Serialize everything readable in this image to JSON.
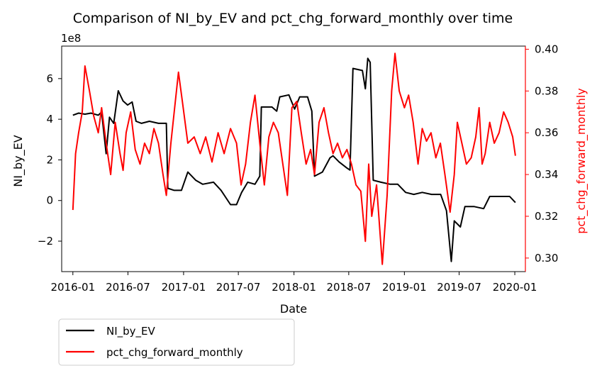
{
  "chart_data": {
    "type": "line",
    "title": "Comparison of NI_by_EV and pct_chg_forward_monthly over time",
    "xlabel": "Date",
    "x_range": [
      "2015-11-25",
      "2020-02-05"
    ],
    "x_ticks": [
      "2016-01",
      "2016-07",
      "2017-01",
      "2017-07",
      "2018-01",
      "2018-07",
      "2019-01",
      "2019-07",
      "2020-01"
    ],
    "left_axis": {
      "label": "NI_by_EV",
      "offset_text": "1e8",
      "range": [
        -3.5,
        7.6
      ],
      "ticks": [
        -2,
        0,
        2,
        4,
        6
      ],
      "tick_labels": [
        "−2",
        "0",
        "2",
        "4",
        "6"
      ],
      "color": "#000000"
    },
    "right_axis": {
      "label": "pct_chg_forward_monthly",
      "range": [
        0.2935,
        0.4015
      ],
      "ticks": [
        0.3,
        0.32,
        0.34,
        0.36,
        0.38,
        0.4
      ],
      "tick_labels": [
        "0.30",
        "0.32",
        "0.34",
        "0.36",
        "0.38",
        "0.40"
      ],
      "color": "#ff0000"
    },
    "legend": {
      "placement": "below-left",
      "entries": [
        "NI_by_EV",
        "pct_chg_forward_monthly"
      ]
    },
    "grid": false,
    "series": [
      {
        "name": "NI_by_EV",
        "axis": "left",
        "color": "#000000",
        "points": [
          [
            "2016-01-01",
            4.2
          ],
          [
            "2016-01-20",
            4.3
          ],
          [
            "2016-02-10",
            4.25
          ],
          [
            "2016-03-01",
            4.3
          ],
          [
            "2016-03-25",
            4.2
          ],
          [
            "2016-04-05",
            4.35
          ],
          [
            "2016-04-20",
            2.3
          ],
          [
            "2016-05-01",
            4.1
          ],
          [
            "2016-05-15",
            3.8
          ],
          [
            "2016-05-30",
            5.4
          ],
          [
            "2016-06-15",
            4.9
          ],
          [
            "2016-06-30",
            4.7
          ],
          [
            "2016-07-15",
            4.85
          ],
          [
            "2016-07-28",
            3.9
          ],
          [
            "2016-08-15",
            3.8
          ],
          [
            "2016-09-10",
            3.9
          ],
          [
            "2016-10-10",
            3.8
          ],
          [
            "2016-11-05",
            3.8
          ],
          [
            "2016-11-10",
            0.6
          ],
          [
            "2016-12-01",
            0.5
          ],
          [
            "2016-12-25",
            0.5
          ],
          [
            "2017-01-15",
            1.4
          ],
          [
            "2017-02-10",
            1.0
          ],
          [
            "2017-03-05",
            0.8
          ],
          [
            "2017-04-10",
            0.9
          ],
          [
            "2017-05-05",
            0.5
          ],
          [
            "2017-06-05",
            -0.2
          ],
          [
            "2017-06-25",
            -0.2
          ],
          [
            "2017-07-12",
            0.4
          ],
          [
            "2017-08-01",
            0.9
          ],
          [
            "2017-08-25",
            0.8
          ],
          [
            "2017-09-10",
            1.2
          ],
          [
            "2017-09-15",
            4.6
          ],
          [
            "2017-10-20",
            4.6
          ],
          [
            "2017-11-05",
            4.4
          ],
          [
            "2017-11-15",
            5.1
          ],
          [
            "2017-12-15",
            5.2
          ],
          [
            "2018-01-03",
            4.5
          ],
          [
            "2018-01-20",
            5.1
          ],
          [
            "2018-02-15",
            5.1
          ],
          [
            "2018-03-01",
            4.4
          ],
          [
            "2018-03-10",
            1.2
          ],
          [
            "2018-04-05",
            1.4
          ],
          [
            "2018-04-30",
            2.1
          ],
          [
            "2018-05-10",
            2.2
          ],
          [
            "2018-05-30",
            1.9
          ],
          [
            "2018-06-25",
            1.6
          ],
          [
            "2018-07-05",
            1.5
          ],
          [
            "2018-07-15",
            6.5
          ],
          [
            "2018-08-15",
            6.4
          ],
          [
            "2018-08-25",
            5.5
          ],
          [
            "2018-09-02",
            7.0
          ],
          [
            "2018-09-10",
            6.8
          ],
          [
            "2018-09-20",
            1.0
          ],
          [
            "2018-10-15",
            0.9
          ],
          [
            "2018-11-15",
            0.8
          ],
          [
            "2018-12-10",
            0.8
          ],
          [
            "2019-01-05",
            0.4
          ],
          [
            "2019-02-01",
            0.3
          ],
          [
            "2019-03-01",
            0.4
          ],
          [
            "2019-04-01",
            0.3
          ],
          [
            "2019-05-01",
            0.3
          ],
          [
            "2019-05-20",
            -0.5
          ],
          [
            "2019-06-05",
            -3.0
          ],
          [
            "2019-06-15",
            -1.0
          ],
          [
            "2019-07-05",
            -1.3
          ],
          [
            "2019-07-20",
            -0.3
          ],
          [
            "2019-08-20",
            -0.3
          ],
          [
            "2019-09-20",
            -0.4
          ],
          [
            "2019-10-10",
            0.2
          ],
          [
            "2019-11-15",
            0.2
          ],
          [
            "2019-12-15",
            0.2
          ],
          [
            "2020-01-03",
            -0.1
          ]
        ]
      },
      {
        "name": "pct_chg_forward_monthly",
        "axis": "right",
        "color": "#ff0000",
        "points": [
          [
            "2016-01-01",
            0.323
          ],
          [
            "2016-01-10",
            0.35
          ],
          [
            "2016-01-20",
            0.36
          ],
          [
            "2016-02-01",
            0.37
          ],
          [
            "2016-02-10",
            0.392
          ],
          [
            "2016-02-25",
            0.38
          ],
          [
            "2016-03-10",
            0.368
          ],
          [
            "2016-03-25",
            0.36
          ],
          [
            "2016-04-05",
            0.372
          ],
          [
            "2016-04-20",
            0.355
          ],
          [
            "2016-05-05",
            0.34
          ],
          [
            "2016-05-20",
            0.365
          ],
          [
            "2016-06-05",
            0.35
          ],
          [
            "2016-06-15",
            0.342
          ],
          [
            "2016-06-25",
            0.36
          ],
          [
            "2016-07-10",
            0.37
          ],
          [
            "2016-07-25",
            0.352
          ],
          [
            "2016-08-10",
            0.345
          ],
          [
            "2016-08-25",
            0.355
          ],
          [
            "2016-09-10",
            0.35
          ],
          [
            "2016-09-25",
            0.362
          ],
          [
            "2016-10-10",
            0.355
          ],
          [
            "2016-10-25",
            0.34
          ],
          [
            "2016-11-05",
            0.33
          ],
          [
            "2016-11-20",
            0.355
          ],
          [
            "2016-12-01",
            0.37
          ],
          [
            "2016-12-15",
            0.389
          ],
          [
            "2016-12-28",
            0.375
          ],
          [
            "2017-01-15",
            0.355
          ],
          [
            "2017-02-05",
            0.358
          ],
          [
            "2017-02-25",
            0.35
          ],
          [
            "2017-03-15",
            0.358
          ],
          [
            "2017-04-05",
            0.346
          ],
          [
            "2017-04-25",
            0.36
          ],
          [
            "2017-05-15",
            0.35
          ],
          [
            "2017-06-05",
            0.362
          ],
          [
            "2017-06-25",
            0.355
          ],
          [
            "2017-07-10",
            0.335
          ],
          [
            "2017-07-25",
            0.345
          ],
          [
            "2017-08-10",
            0.365
          ],
          [
            "2017-08-25",
            0.378
          ],
          [
            "2017-09-10",
            0.355
          ],
          [
            "2017-09-25",
            0.335
          ],
          [
            "2017-10-10",
            0.358
          ],
          [
            "2017-10-25",
            0.365
          ],
          [
            "2017-11-10",
            0.36
          ],
          [
            "2017-11-25",
            0.345
          ],
          [
            "2017-12-10",
            0.33
          ],
          [
            "2017-12-25",
            0.372
          ],
          [
            "2018-01-10",
            0.375
          ],
          [
            "2018-01-25",
            0.36
          ],
          [
            "2018-02-10",
            0.345
          ],
          [
            "2018-02-25",
            0.352
          ],
          [
            "2018-03-10",
            0.34
          ],
          [
            "2018-03-25",
            0.365
          ],
          [
            "2018-04-10",
            0.372
          ],
          [
            "2018-04-25",
            0.36
          ],
          [
            "2018-05-10",
            0.35
          ],
          [
            "2018-05-25",
            0.355
          ],
          [
            "2018-06-10",
            0.348
          ],
          [
            "2018-06-25",
            0.352
          ],
          [
            "2018-07-10",
            0.345
          ],
          [
            "2018-07-25",
            0.335
          ],
          [
            "2018-08-10",
            0.332
          ],
          [
            "2018-08-25",
            0.308
          ],
          [
            "2018-09-05",
            0.345
          ],
          [
            "2018-09-15",
            0.32
          ],
          [
            "2018-10-01",
            0.335
          ],
          [
            "2018-10-20",
            0.297
          ],
          [
            "2018-11-05",
            0.33
          ],
          [
            "2018-11-20",
            0.38
          ],
          [
            "2018-12-01",
            0.398
          ],
          [
            "2018-12-15",
            0.38
          ],
          [
            "2019-01-01",
            0.372
          ],
          [
            "2019-01-15",
            0.378
          ],
          [
            "2019-01-30",
            0.365
          ],
          [
            "2019-02-15",
            0.345
          ],
          [
            "2019-03-01",
            0.362
          ],
          [
            "2019-03-15",
            0.356
          ],
          [
            "2019-03-30",
            0.36
          ],
          [
            "2019-04-15",
            0.348
          ],
          [
            "2019-04-30",
            0.355
          ],
          [
            "2019-05-15",
            0.34
          ],
          [
            "2019-06-01",
            0.322
          ],
          [
            "2019-06-15",
            0.34
          ],
          [
            "2019-06-25",
            0.365
          ],
          [
            "2019-07-10",
            0.355
          ],
          [
            "2019-07-25",
            0.345
          ],
          [
            "2019-08-10",
            0.348
          ],
          [
            "2019-08-25",
            0.358
          ],
          [
            "2019-09-05",
            0.372
          ],
          [
            "2019-09-15",
            0.345
          ],
          [
            "2019-09-25",
            0.35
          ],
          [
            "2019-10-10",
            0.365
          ],
          [
            "2019-10-25",
            0.355
          ],
          [
            "2019-11-10",
            0.36
          ],
          [
            "2019-11-25",
            0.37
          ],
          [
            "2019-12-10",
            0.365
          ],
          [
            "2019-12-25",
            0.358
          ],
          [
            "2020-01-03",
            0.349
          ]
        ]
      }
    ]
  }
}
